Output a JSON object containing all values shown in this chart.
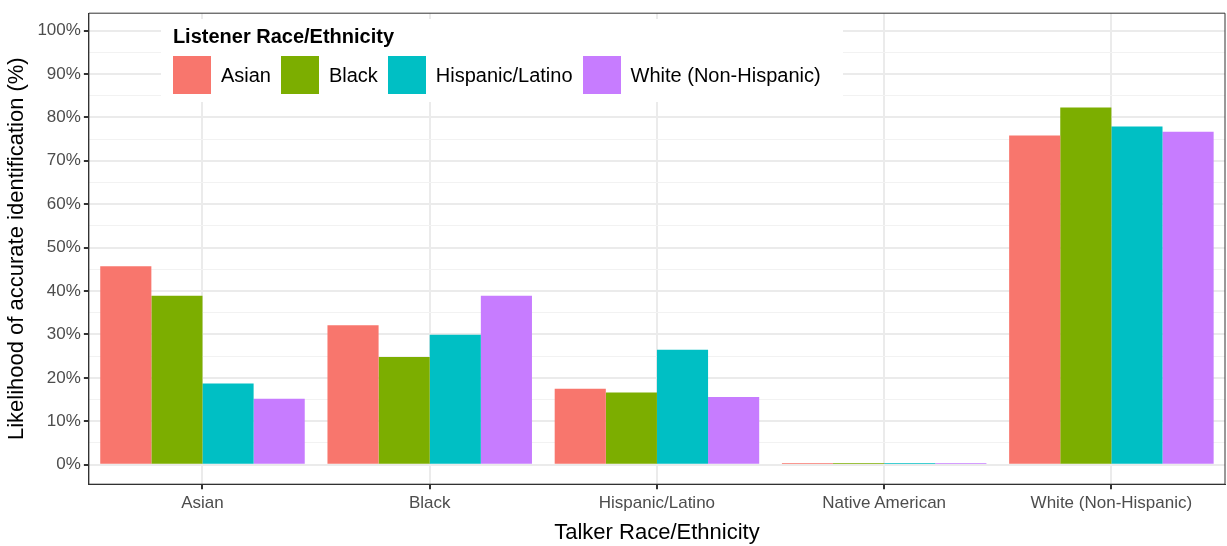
{
  "chart_data": {
    "type": "bar",
    "xlabel": "Talker Race/Ethnicity",
    "ylabel": "Likelihood of accurate identification (%)",
    "legend_title": "Listener Race/Ethnicity",
    "legend": "top left",
    "grid": true,
    "categories": [
      "Asian",
      "Black",
      "Hispanic/Latino",
      "Native American",
      "White (Non-Hispanic)"
    ],
    "series": [
      {
        "name": "Asian",
        "color": "#f8766d",
        "values": [
          45.7,
          32.1,
          17.5,
          0.4,
          75.8
        ]
      },
      {
        "name": "Black",
        "color": "#7cae00",
        "values": [
          38.9,
          24.8,
          16.6,
          0.4,
          82.3
        ]
      },
      {
        "name": "Hispanic/Latino",
        "color": "#00bfc4",
        "values": [
          18.7,
          29.9,
          26.5,
          0.4,
          77.9
        ]
      },
      {
        "name": "White (Non-Hispanic)",
        "color": "#c77cff",
        "values": [
          15.2,
          38.9,
          15.6,
          0.4,
          76.7
        ]
      }
    ],
    "ylim": [
      -4.5,
      104
    ],
    "yticks": [
      {
        "value": 0,
        "label": "0%"
      },
      {
        "value": 5,
        "label": null
      },
      {
        "value": 10,
        "label": "10%"
      },
      {
        "value": 15,
        "label": null
      },
      {
        "value": 20,
        "label": "20%"
      },
      {
        "value": 25,
        "label": null
      },
      {
        "value": 30,
        "label": "30%"
      },
      {
        "value": 35,
        "label": null
      },
      {
        "value": 40,
        "label": "40%"
      },
      {
        "value": 45,
        "label": null
      },
      {
        "value": 50,
        "label": "50%"
      },
      {
        "value": 55,
        "label": null
      },
      {
        "value": 60,
        "label": "60%"
      },
      {
        "value": 65,
        "label": null
      },
      {
        "value": 70,
        "label": "70%"
      },
      {
        "value": 75,
        "label": null
      },
      {
        "value": 80,
        "label": "80%"
      },
      {
        "value": 85,
        "label": null
      },
      {
        "value": 90,
        "label": "90%"
      },
      {
        "value": 95,
        "label": null
      },
      {
        "value": 100,
        "label": "100%"
      }
    ]
  }
}
